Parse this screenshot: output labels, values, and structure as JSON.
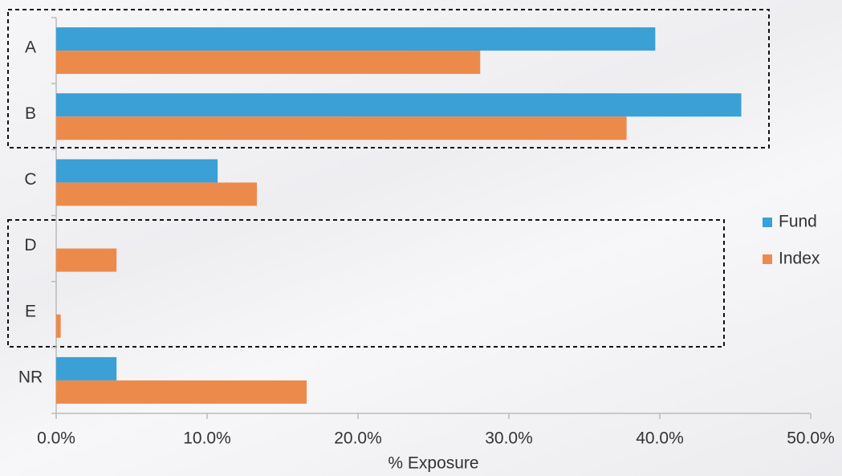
{
  "chart_data": {
    "type": "hbar",
    "xlabel": "% Exposure",
    "categories": [
      "A",
      "B",
      "C",
      "D",
      "E",
      "NR"
    ],
    "series": [
      {
        "name": "Fund",
        "color": "#3aa0d6",
        "values": [
          39.7,
          45.4,
          10.7,
          0,
          0,
          4.0
        ]
      },
      {
        "name": "Index",
        "color": "#ec8a4c",
        "values": [
          28.1,
          37.8,
          13.3,
          4.0,
          0.3,
          16.6
        ]
      }
    ],
    "xlim": [
      0,
      50
    ],
    "xticks": [
      {
        "value": 0,
        "label": "0.0%"
      },
      {
        "value": 10,
        "label": "10.0%"
      },
      {
        "value": 20,
        "label": "20.0%"
      },
      {
        "value": 30,
        "label": "30.0%"
      },
      {
        "value": 40,
        "label": "40.0%"
      },
      {
        "value": 50,
        "label": "50.0%"
      }
    ],
    "legend": "right"
  }
}
